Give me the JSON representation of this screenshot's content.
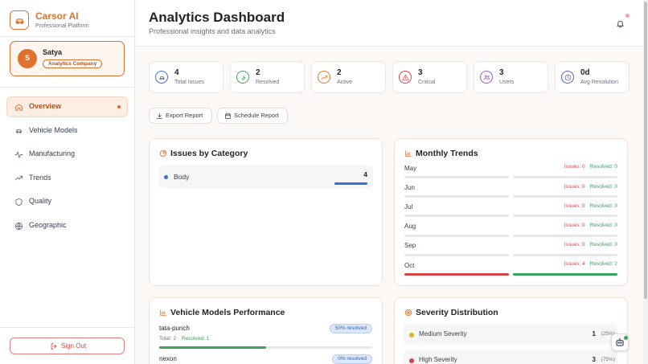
{
  "sidebar": {
    "brand": "Carsor AI",
    "tagline": "Professional Platform",
    "user": {
      "initial": "S",
      "name": "Satya",
      "company": "Analytics Company"
    },
    "nav": [
      "Overview",
      "Vehicle Models",
      "Manufacturing",
      "Trends",
      "Quality",
      "Geographic"
    ],
    "sign_out": "Sign Out"
  },
  "header": {
    "title": "Analytics Dashboard",
    "subtitle": "Professional insights and data analytics"
  },
  "stats": [
    {
      "value": 4,
      "label": "Total Issues"
    },
    {
      "value": 2,
      "label": "Resolved"
    },
    {
      "value": 2,
      "label": "Active"
    },
    {
      "value": 3,
      "label": "Critical"
    },
    {
      "value": 3,
      "label": "Users"
    },
    {
      "value": "0d",
      "label": "Avg Resolution"
    }
  ],
  "actions": [
    "Export Report",
    "Schedule Report"
  ],
  "issues_by_category": {
    "title": "Issues by Category",
    "items": [
      {
        "name": "Body",
        "count": 4
      }
    ]
  },
  "monthly_trends": {
    "title": "Monthly Trends",
    "months": [
      {
        "month": "May",
        "issues": {
          "value": 0,
          "label": "Issues: 0"
        },
        "resolved": {
          "value": 0,
          "label": "Resolved: 0"
        }
      },
      {
        "month": "Jun",
        "issues": {
          "value": 0,
          "label": "Issues: 0"
        },
        "resolved": {
          "value": 0,
          "label": "Resolved: 0"
        }
      },
      {
        "month": "Jul",
        "issues": {
          "value": 0,
          "label": "Issues: 0"
        },
        "resolved": {
          "value": 0,
          "label": "Resolved: 0"
        }
      },
      {
        "month": "Aug",
        "issues": {
          "value": 0,
          "label": "Issues: 0"
        },
        "resolved": {
          "value": 0,
          "label": "Resolved: 0"
        }
      },
      {
        "month": "Sep",
        "issues": {
          "value": 0,
          "label": "Issues: 0"
        },
        "resolved": {
          "value": 0,
          "label": "Resolved: 0"
        }
      },
      {
        "month": "Oct",
        "issues": {
          "value": 4,
          "label": "Issues: 4"
        },
        "resolved": {
          "value": 2,
          "label": "Resolved: 2"
        }
      }
    ]
  },
  "vehicle_models": {
    "title": "Vehicle Models Performance",
    "models": [
      {
        "name": "tata-punch",
        "resolved_pct": {
          "value": 50,
          "label": "50% resolved"
        },
        "total": {
          "value": 2,
          "label": "Total: 2"
        },
        "resolved": {
          "value": 1,
          "label": "Resolved: 1"
        }
      },
      {
        "name": "nexon",
        "resolved_pct": {
          "value": 0,
          "label": "0% resolved"
        }
      }
    ]
  },
  "severity": {
    "title": "Severity Distribution",
    "items": [
      {
        "name": "Medium Severity",
        "count": 1,
        "share": "(25%)"
      },
      {
        "name": "High Severity",
        "count": 3,
        "share": "(75%)"
      }
    ]
  }
}
